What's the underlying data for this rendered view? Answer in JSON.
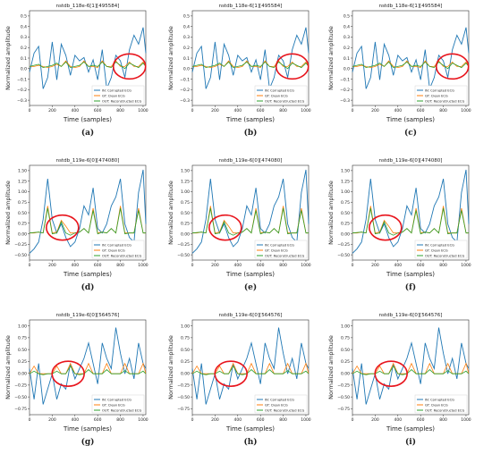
{
  "figure": {
    "ylabel": "Normalized amplitude",
    "xlabel": "Time (samples)",
    "legend": {
      "labels": [
        "IN: Corrupted ECG",
        "GT: Clean ECG",
        "OUT: Reconstructed ECG"
      ],
      "placement": "lower-right"
    },
    "colors": {
      "corrupted": "#1f77b4",
      "clean": "#ff7f0e",
      "reconstructed": "#2ca02c",
      "highlight": "#e8141c"
    },
    "rows": [
      {
        "title": "nstdb_118e-6[1][495584]",
        "ylim": [
          -0.35,
          0.5
        ],
        "yticks": [
          "−0.3",
          "−0.2",
          "−0.1",
          "0.0",
          "0.1",
          "0.2",
          "0.3",
          "0.4",
          "0.5"
        ],
        "highlight": {
          "x": 880,
          "y": 0.0
        }
      },
      {
        "title": "nstdb_119e-6[0][474080]",
        "ylim": [
          -0.6,
          1.5
        ],
        "yticks": [
          "−0.50",
          "−0.25",
          "0.00",
          "0.25",
          "0.50",
          "0.75",
          "1.00",
          "1.25",
          "1.50"
        ],
        "highlight": {
          "x": 290,
          "y": 0.12
        }
      },
      {
        "title": "nstdb_119e-6[0][564576]",
        "ylim": [
          -0.8,
          1.05
        ],
        "yticks": [
          "−0.75",
          "−0.50",
          "−0.25",
          "0.00",
          "0.25",
          "0.50",
          "0.75",
          "1.00"
        ],
        "highlight": {
          "x": 340,
          "y": 0.0
        }
      }
    ],
    "panel_labels": [
      "(a)",
      "(b)",
      "(c)",
      "(d)",
      "(e)",
      "(f)",
      "(g)",
      "(h)",
      "(i)"
    ],
    "xticks": [
      "0",
      "200",
      "400",
      "600",
      "800",
      "1000"
    ]
  },
  "chart_data": [
    {
      "type": "line",
      "title": "nstdb_118e-6[1][495584]",
      "xlabel": "Time (samples)",
      "ylabel": "Normalized amplitude",
      "xlim": [
        0,
        1024
      ],
      "ylim": [
        -0.35,
        0.5
      ],
      "x": [
        0,
        40,
        80,
        120,
        160,
        200,
        240,
        280,
        320,
        360,
        400,
        440,
        480,
        520,
        560,
        600,
        640,
        680,
        720,
        760,
        800,
        840,
        880,
        920,
        960,
        1000,
        1024
      ],
      "series": [
        {
          "name": "IN: Corrupted ECG",
          "values": [
            -0.05,
            0.12,
            0.18,
            -0.2,
            -0.1,
            0.22,
            -0.12,
            0.2,
            0.1,
            -0.08,
            0.1,
            0.05,
            0.08,
            -0.05,
            0.06,
            -0.12,
            0.15,
            -0.2,
            -0.1,
            0.1,
            0.05,
            -0.1,
            0.15,
            0.28,
            0.2,
            0.35,
            0.12
          ]
        },
        {
          "name": "GT: Clean ECG",
          "values": [
            0.0,
            0.0,
            0.01,
            0.0,
            -0.01,
            0.0,
            0.02,
            0.0,
            0.05,
            0.0,
            -0.01,
            0.0,
            0.05,
            0.0,
            0.0,
            -0.01,
            0.05,
            0.0,
            0.0,
            0.05,
            0.0,
            0.0,
            0.04,
            0.0,
            0.0,
            0.04,
            0.0
          ]
        },
        {
          "name": "OUT: Reconstructed ECG",
          "values": [
            0.0,
            0.01,
            0.02,
            -0.01,
            0.0,
            0.01,
            0.03,
            0.0,
            0.04,
            -0.01,
            0.0,
            0.01,
            0.04,
            0.0,
            0.01,
            0.0,
            0.04,
            0.0,
            -0.01,
            0.04,
            0.01,
            -0.02,
            0.03,
            0.01,
            -0.01,
            0.03,
            0.0
          ]
        }
      ]
    },
    {
      "type": "line",
      "title": "nstdb_119e-6[0][474080]",
      "xlabel": "Time (samples)",
      "ylabel": "Normalized amplitude",
      "xlim": [
        0,
        1024
      ],
      "ylim": [
        -0.6,
        1.5
      ],
      "x": [
        0,
        40,
        80,
        120,
        160,
        200,
        240,
        280,
        320,
        360,
        400,
        440,
        480,
        520,
        560,
        600,
        640,
        680,
        720,
        760,
        800,
        840,
        880,
        920,
        960,
        1000,
        1024
      ],
      "series": [
        {
          "name": "IN: Corrupted ECG",
          "values": [
            -0.45,
            -0.35,
            -0.2,
            0.3,
            1.2,
            0.3,
            0.0,
            0.2,
            -0.1,
            -0.3,
            -0.2,
            0.1,
            0.6,
            0.4,
            1.0,
            0.1,
            0.0,
            0.2,
            0.6,
            0.8,
            1.2,
            0.2,
            -0.1,
            -0.2,
            0.9,
            1.4,
            0.2
          ]
        },
        {
          "name": "GT: Clean ECG",
          "values": [
            0.0,
            0.0,
            0.02,
            0.0,
            0.6,
            0.0,
            0.02,
            0.28,
            0.15,
            0.0,
            0.0,
            0.02,
            0.1,
            0.0,
            0.55,
            0.0,
            0.02,
            0.0,
            0.1,
            0.0,
            0.6,
            0.0,
            0.0,
            0.0,
            0.55,
            0.0,
            0.0
          ]
        },
        {
          "name": "OUT: Reconstructed ECG",
          "values": [
            0.0,
            0.01,
            0.02,
            0.0,
            0.55,
            -0.02,
            0.0,
            0.25,
            0.0,
            -0.05,
            0.0,
            0.02,
            0.1,
            0.0,
            0.5,
            -0.02,
            0.02,
            0.0,
            0.1,
            0.0,
            0.55,
            -0.02,
            0.0,
            0.0,
            0.5,
            0.0,
            0.0
          ]
        }
      ]
    },
    {
      "type": "line",
      "title": "nstdb_119e-6[0][564576]",
      "xlabel": "Time (samples)",
      "ylabel": "Normalized amplitude",
      "xlim": [
        0,
        1024
      ],
      "ylim": [
        -0.8,
        1.05
      ],
      "x": [
        0,
        40,
        80,
        120,
        160,
        200,
        240,
        280,
        320,
        360,
        400,
        440,
        480,
        520,
        560,
        600,
        640,
        680,
        720,
        760,
        800,
        840,
        880,
        920,
        960,
        1000,
        1024
      ],
      "series": [
        {
          "name": "IN: Corrupted ECG",
          "values": [
            0.1,
            -0.5,
            0.2,
            -0.6,
            -0.3,
            0.0,
            -0.5,
            -0.2,
            -0.3,
            0.2,
            -0.1,
            0.1,
            0.3,
            0.6,
            0.2,
            -0.2,
            0.6,
            0.3,
            0.1,
            0.9,
            0.4,
            0.0,
            0.3,
            -0.1,
            0.6,
            0.2,
            0.1
          ]
        },
        {
          "name": "GT: Clean ECG",
          "values": [
            0.0,
            0.15,
            0.0,
            0.0,
            0.0,
            0.0,
            0.15,
            0.0,
            0.0,
            0.2,
            0.0,
            0.0,
            0.0,
            0.2,
            0.0,
            0.0,
            0.0,
            0.2,
            0.0,
            0.0,
            0.0,
            0.2,
            0.0,
            0.0,
            0.0,
            0.2,
            0.0
          ]
        },
        {
          "name": "OUT: Reconstructed ECG",
          "values": [
            0.0,
            0.05,
            0.0,
            -0.02,
            0.0,
            0.0,
            0.05,
            0.0,
            0.0,
            0.15,
            0.0,
            -0.02,
            0.0,
            0.08,
            0.0,
            0.0,
            0.0,
            0.08,
            0.0,
            0.0,
            0.0,
            0.06,
            0.0,
            0.0,
            0.0,
            0.05,
            0.0
          ]
        }
      ]
    }
  ]
}
